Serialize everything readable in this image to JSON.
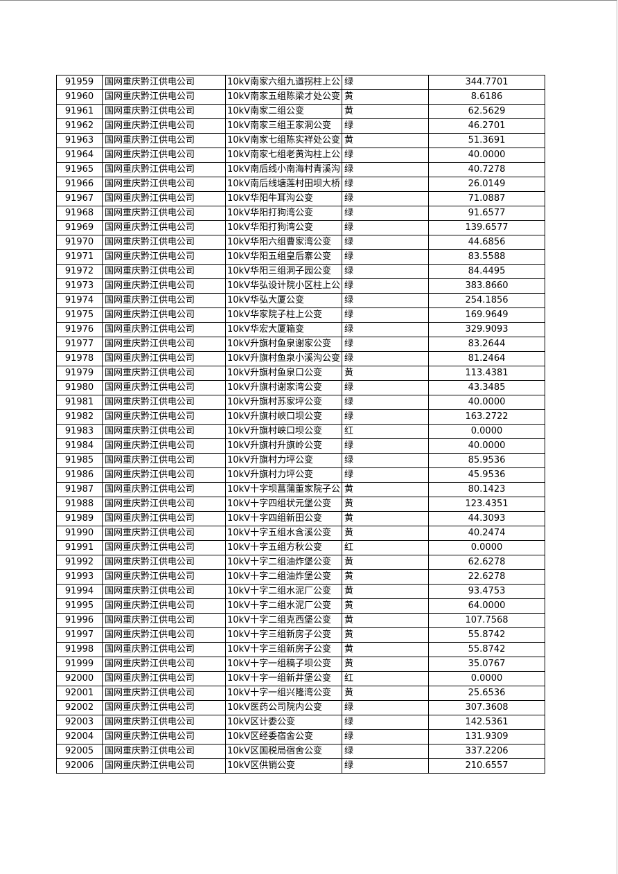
{
  "table": {
    "rows": [
      [
        "91959",
        "国网重庆黔江供电公司",
        "10kV南家六组九道拐柱上公",
        "绿",
        "344.7701"
      ],
      [
        "91960",
        "国网重庆黔江供电公司",
        "10kV南家五组陈梁才处公变",
        "黄",
        "8.6186"
      ],
      [
        "91961",
        "国网重庆黔江供电公司",
        "10kV南家二组公变",
        "黄",
        "62.5629"
      ],
      [
        "91962",
        "国网重庆黔江供电公司",
        "10kV南家三组王家洞公变",
        "绿",
        "46.2701"
      ],
      [
        "91963",
        "国网重庆黔江供电公司",
        "10kV南家七组陈实祥处公变",
        "黄",
        "51.3691"
      ],
      [
        "91964",
        "国网重庆黔江供电公司",
        "10kV南家七组老黄沟柱上公",
        "绿",
        "40.0000"
      ],
      [
        "91965",
        "国网重庆黔江供电公司",
        "10kV南后线小南海村青溪沟",
        "绿",
        "40.7278"
      ],
      [
        "91966",
        "国网重庆黔江供电公司",
        "10kV南后线塘莲村田坝大桥",
        "绿",
        "26.0149"
      ],
      [
        "91967",
        "国网重庆黔江供电公司",
        "10kV华阳牛耳沟公变",
        "绿",
        "71.0887"
      ],
      [
        "91968",
        "国网重庆黔江供电公司",
        "10kV华阳打狗湾公变",
        "绿",
        "91.6577"
      ],
      [
        "91969",
        "国网重庆黔江供电公司",
        "10kV华阳打狗湾公变",
        "绿",
        "139.6577"
      ],
      [
        "91970",
        "国网重庆黔江供电公司",
        "10kV华阳六组曹家湾公变",
        "绿",
        "44.6856"
      ],
      [
        "91971",
        "国网重庆黔江供电公司",
        "10kV华阳五组皇后寨公变",
        "绿",
        "83.5588"
      ],
      [
        "91972",
        "国网重庆黔江供电公司",
        "10kV华阳三组洞子园公变",
        "绿",
        "84.4495"
      ],
      [
        "91973",
        "国网重庆黔江供电公司",
        "10kV华弘设计院小区柱上公",
        "绿",
        "383.8660"
      ],
      [
        "91974",
        "国网重庆黔江供电公司",
        "10kV华弘大厦公变",
        "绿",
        "254.1856"
      ],
      [
        "91975",
        "国网重庆黔江供电公司",
        "10kV华家院子柱上公变",
        "绿",
        "169.9649"
      ],
      [
        "91976",
        "国网重庆黔江供电公司",
        "10kV华宏大厦箱变",
        "绿",
        "329.9093"
      ],
      [
        "91977",
        "国网重庆黔江供电公司",
        "10kV升旗村鱼泉谢家公变",
        "绿",
        "83.2644"
      ],
      [
        "91978",
        "国网重庆黔江供电公司",
        "10kV升旗村鱼泉小溪沟公变",
        "绿",
        "81.2464"
      ],
      [
        "91979",
        "国网重庆黔江供电公司",
        "10kV升旗村鱼泉口公变",
        "黄",
        "113.4381"
      ],
      [
        "91980",
        "国网重庆黔江供电公司",
        "10kV升旗村谢家湾公变",
        "绿",
        "43.3485"
      ],
      [
        "91981",
        "国网重庆黔江供电公司",
        "10kV升旗村苏家坪公变",
        "绿",
        "40.0000"
      ],
      [
        "91982",
        "国网重庆黔江供电公司",
        "10kV升旗村峡口坝公变",
        "绿",
        "163.2722"
      ],
      [
        "91983",
        "国网重庆黔江供电公司",
        "10kV升旗村峡口坝公变",
        "红",
        "0.0000"
      ],
      [
        "91984",
        "国网重庆黔江供电公司",
        "10kV升旗村升旗岭公变",
        "绿",
        "40.0000"
      ],
      [
        "91985",
        "国网重庆黔江供电公司",
        "10kV升旗村力坪公变",
        "绿",
        "85.9536"
      ],
      [
        "91986",
        "国网重庆黔江供电公司",
        "10kV升旗村力坪公变",
        "绿",
        "45.9536"
      ],
      [
        "91987",
        "国网重庆黔江供电公司",
        "10kV十字坝菖蒲董家院子公",
        "黄",
        "80.1423"
      ],
      [
        "91988",
        "国网重庆黔江供电公司",
        "10kV十字四组状元堡公变",
        "黄",
        "123.4351"
      ],
      [
        "91989",
        "国网重庆黔江供电公司",
        "10kV十字四组新田公变",
        "黄",
        "44.3093"
      ],
      [
        "91990",
        "国网重庆黔江供电公司",
        "10kV十字五组水含溪公变",
        "黄",
        "40.2474"
      ],
      [
        "91991",
        "国网重庆黔江供电公司",
        "10kV十字五组方秋公变",
        "红",
        "0.0000"
      ],
      [
        "91992",
        "国网重庆黔江供电公司",
        "10kV十字二组油炸堡公变",
        "黄",
        "62.6278"
      ],
      [
        "91993",
        "国网重庆黔江供电公司",
        "10kV十字二组油炸堡公变",
        "黄",
        "22.6278"
      ],
      [
        "91994",
        "国网重庆黔江供电公司",
        "10kV十字二组水泥厂公变",
        "黄",
        "93.4753"
      ],
      [
        "91995",
        "国网重庆黔江供电公司",
        "10kV十字二组水泥厂公变",
        "黄",
        "64.0000"
      ],
      [
        "91996",
        "国网重庆黔江供电公司",
        "10kV十字二组克西堡公变",
        "黄",
        "107.7568"
      ],
      [
        "91997",
        "国网重庆黔江供电公司",
        "10kV十字三组新房子公变",
        "黄",
        "55.8742"
      ],
      [
        "91998",
        "国网重庆黔江供电公司",
        "10kV十字三组新房子公变",
        "黄",
        "55.8742"
      ],
      [
        "91999",
        "国网重庆黔江供电公司",
        "10kV十字一组稿子坝公变",
        "黄",
        "35.0767"
      ],
      [
        "92000",
        "国网重庆黔江供电公司",
        "10kV十字一组新井堡公变",
        "红",
        "0.0000"
      ],
      [
        "92001",
        "国网重庆黔江供电公司",
        "10kV十字一组兴隆湾公变",
        "黄",
        "25.6536"
      ],
      [
        "92002",
        "国网重庆黔江供电公司",
        "10kV医药公司院内公变",
        "绿",
        "307.3608"
      ],
      [
        "92003",
        "国网重庆黔江供电公司",
        "10kV区计委公变",
        "绿",
        "142.5361"
      ],
      [
        "92004",
        "国网重庆黔江供电公司",
        "10kV区经委宿舍公变",
        "绿",
        "131.9309"
      ],
      [
        "92005",
        "国网重庆黔江供电公司",
        "10kV区国税局宿舍公变",
        "绿",
        "337.2206"
      ],
      [
        "92006",
        "国网重庆黔江供电公司",
        "10kV区供销公变",
        "绿",
        "210.6557"
      ]
    ]
  }
}
